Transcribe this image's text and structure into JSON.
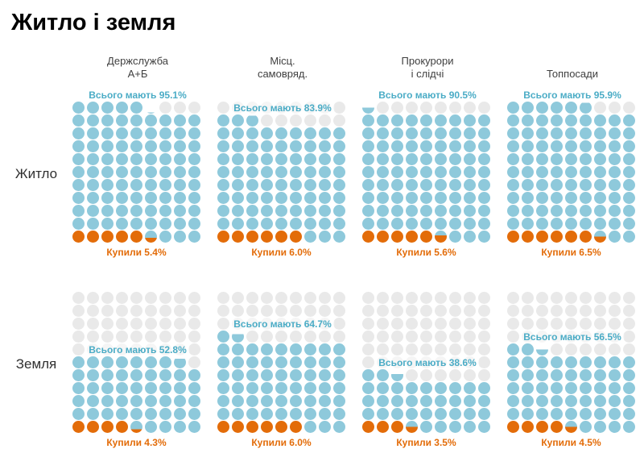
{
  "title": "Житло і земля",
  "chart_data": {
    "type": "waffle",
    "description": "Two rows of pictogram (waffle) charts, one dot = 1%, dots fill bottom-left to top-right",
    "grid": {
      "columns": 9,
      "rows": 11
    },
    "colors": {
      "have_dot": "#8EC9DB",
      "bought_dot": "#E36C09",
      "empty_dot": "#E9E9E9",
      "have_text": "#4BACC6",
      "bought_text": "#E36C09",
      "header_text": "#3f3f3f",
      "row_label_text": "#303030",
      "title_text": "#000000"
    },
    "columns": [
      {
        "label": "Держслужба А+Б",
        "lines": [
          "Держслужба",
          "А+Б"
        ]
      },
      {
        "label": "Місц. самовряд.",
        "lines": [
          "Місц.",
          "самовряд."
        ]
      },
      {
        "label": "Прокурори і слідчі",
        "lines": [
          "Прокурори",
          "і слідчі"
        ]
      },
      {
        "label": "Топпосади",
        "lines": [
          "Топпосади"
        ]
      }
    ],
    "rows": [
      {
        "label": "Житло",
        "cells": [
          {
            "column": "Держслужба А+Б",
            "have": 95.1,
            "bought": 5.4,
            "have_label": "Всього мають 95.1%",
            "bought_label": "Купили 5.4%"
          },
          {
            "column": "Місц. самовряд.",
            "have": 83.9,
            "bought": 6.0,
            "have_label": "Всього мають 83.9%",
            "bought_label": "Купили 6.0%"
          },
          {
            "column": "Прокурори і слідчі",
            "have": 90.5,
            "bought": 5.6,
            "have_label": "Всього мають 90.5%",
            "bought_label": "Купили 5.6%"
          },
          {
            "column": "Топпосади",
            "have": 95.9,
            "bought": 6.5,
            "have_label": "Всього мають 95.9%",
            "bought_label": "Купили 6.5%"
          }
        ]
      },
      {
        "label": "Земля",
        "cells": [
          {
            "column": "Держслужба А+Б",
            "have": 52.8,
            "bought": 4.3,
            "have_label": "Всього мають 52.8%",
            "bought_label": "Купили 4.3%"
          },
          {
            "column": "Місц. самовряд.",
            "have": 64.7,
            "bought": 6.0,
            "have_label": "Всього мають 64.7%",
            "bought_label": "Купили 6.0%"
          },
          {
            "column": "Прокурори і слідчі",
            "have": 38.6,
            "bought": 3.5,
            "have_label": "Всього мають 38.6%",
            "bought_label": "Купили 3.5%"
          },
          {
            "column": "Топпосади",
            "have": 56.5,
            "bought": 4.5,
            "have_label": "Всього мають 56.5%",
            "bought_label": "Купили 4.5%"
          }
        ]
      }
    ]
  }
}
